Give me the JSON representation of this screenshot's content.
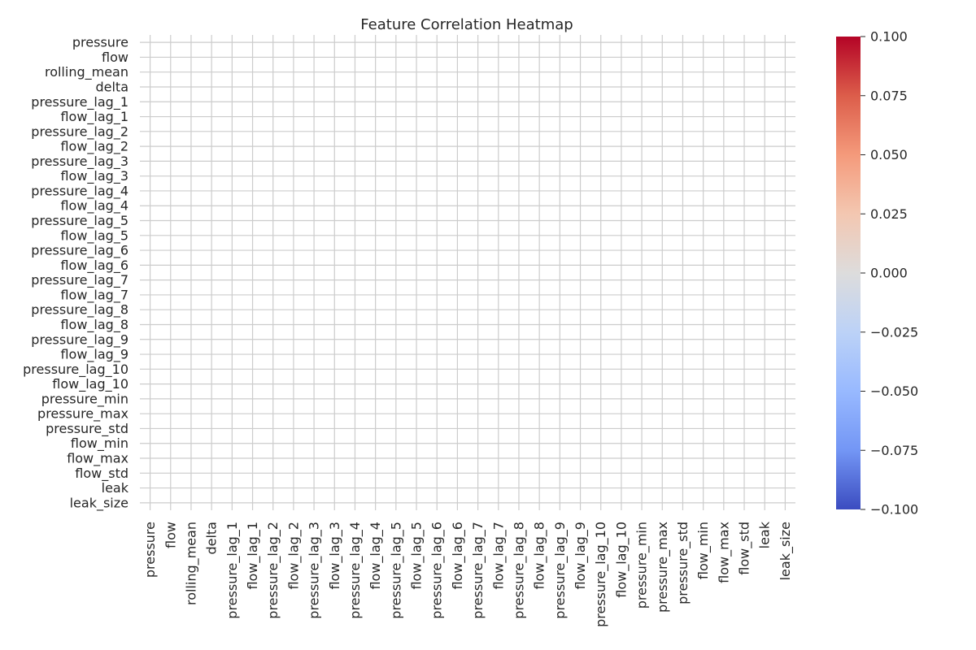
{
  "chart_data": {
    "type": "heatmap",
    "title": "Feature Correlation Heatmap",
    "features": [
      "pressure",
      "flow",
      "rolling_mean",
      "delta",
      "pressure_lag_1",
      "flow_lag_1",
      "pressure_lag_2",
      "flow_lag_2",
      "pressure_lag_3",
      "flow_lag_3",
      "pressure_lag_4",
      "flow_lag_4",
      "pressure_lag_5",
      "flow_lag_5",
      "pressure_lag_6",
      "flow_lag_6",
      "pressure_lag_7",
      "flow_lag_7",
      "pressure_lag_8",
      "flow_lag_8",
      "pressure_lag_9",
      "flow_lag_9",
      "pressure_lag_10",
      "flow_lag_10",
      "pressure_min",
      "pressure_max",
      "pressure_std",
      "flow_min",
      "flow_max",
      "flow_std",
      "leak",
      "leak_size"
    ],
    "values": null,
    "colormap": "coolwarm",
    "colorbar": {
      "range": [
        -0.1,
        0.1
      ],
      "ticks": [
        0.1,
        0.075,
        0.05,
        0.025,
        0.0,
        -0.025,
        -0.05,
        -0.075,
        -0.1
      ],
      "tick_labels": [
        "0.100",
        "0.075",
        "0.050",
        "0.025",
        "0.000",
        "−0.025",
        "−0.050",
        "−0.075",
        "−0.100"
      ],
      "colors": [
        "#b40426",
        "#dc5d4a",
        "#f49a7b",
        "#f3c7b1",
        "#dddcdc",
        "#bcd2f7",
        "#98b9ff",
        "#7396f5",
        "#3b4cc0"
      ]
    },
    "grid": true,
    "grid_color": "#cccccc"
  }
}
